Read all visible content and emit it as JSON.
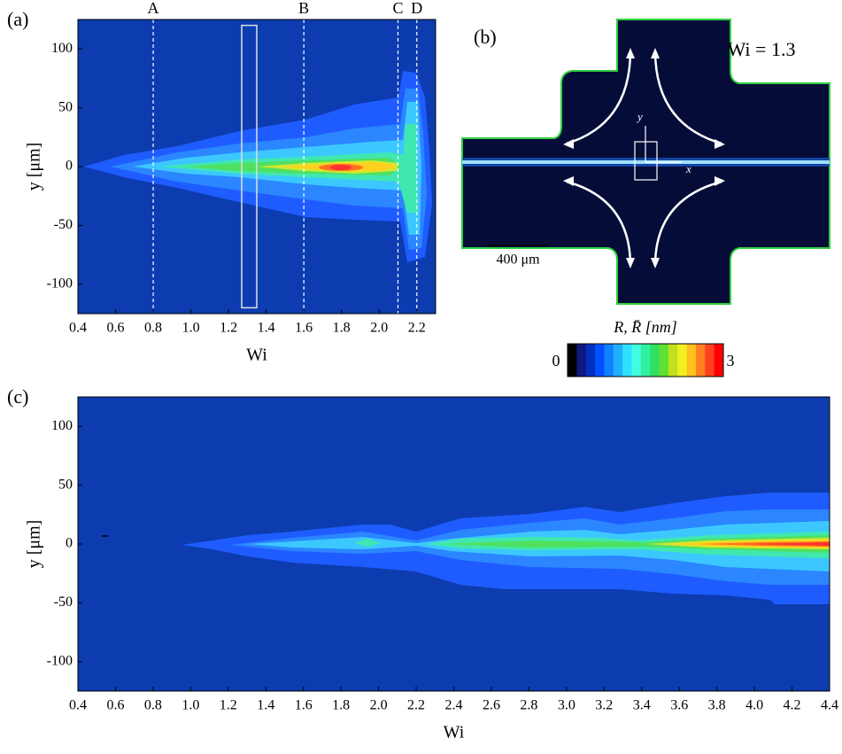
{
  "chart_data": [
    {
      "type": "contour",
      "panel_label": "(a)",
      "x_label": "Wi",
      "y_label": "y [μm]",
      "xlim": [
        0.4,
        2.3
      ],
      "xticks": [
        0.4,
        0.6,
        0.8,
        {
          "value": 1,
          "label": "1.0"
        },
        1.2,
        1.4,
        1.6,
        1.8,
        {
          "value": 2,
          "label": "2.0"
        },
        2.2
      ],
      "ylim": [
        -125,
        125
      ],
      "yticks": [
        -100,
        -50,
        0,
        50,
        100
      ],
      "markers": [
        {
          "label": "A",
          "x": 0.8
        },
        {
          "label": "B",
          "x": 1.6
        },
        {
          "label": "C",
          "x": 2.1
        },
        {
          "label": "D",
          "x": 2.2
        }
      ],
      "highlight": {
        "x": [
          1.27,
          1.35
        ],
        "y": [
          -120,
          120
        ]
      }
    },
    {
      "type": "image",
      "panel_label": "(b)",
      "annotation": "Wi = 1.3",
      "scale_bar": "400 μm",
      "x_axis": "x",
      "y_axis": "y",
      "colorbar": {
        "label": "R, R̄ [nm]",
        "min": 0,
        "max": 3,
        "colors": [
          "#000000",
          "#101880",
          "#0030c0",
          "#0050ff",
          "#1080ff",
          "#20b0ff",
          "#30e0ff",
          "#40ffe0",
          "#30f0a0",
          "#30e060",
          "#60e030",
          "#c0e020",
          "#f0f020",
          "#ffc020",
          "#ff8020",
          "#ff4020",
          "#ff0000"
        ]
      }
    },
    {
      "type": "contour",
      "panel_label": "(c)",
      "x_label": "Wi",
      "y_label": "y [μm]",
      "xlim": [
        0.4,
        4.4
      ],
      "xticks": [
        0.4,
        0.6,
        0.8,
        {
          "value": 1,
          "label": "1.0"
        },
        1.2,
        1.4,
        1.6,
        1.8,
        {
          "value": 2,
          "label": "2.0"
        },
        2.2,
        2.4,
        2.6,
        2.8,
        {
          "value": 3,
          "label": "3.0"
        },
        3.2,
        3.4,
        3.6,
        3.8,
        {
          "value": 4,
          "label": "4.0"
        },
        4.2,
        4.4
      ],
      "ylim": [
        -125,
        125
      ],
      "yticks": [
        -100,
        -50,
        0,
        50,
        100
      ]
    }
  ]
}
